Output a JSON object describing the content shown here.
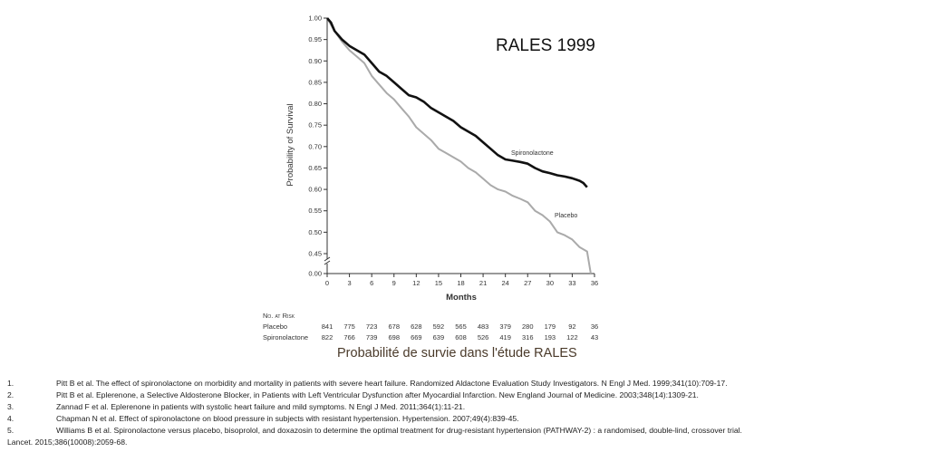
{
  "title": "RALES 1999",
  "caption": "Probabilité de survie dans l'étude RALES",
  "chart_data": {
    "type": "line",
    "xlabel": "Months",
    "ylabel": "Probability of Survival",
    "xlim": [
      0,
      36
    ],
    "ylim": [
      0.45,
      1.0
    ],
    "y_axis_break": "between 0.00 and 0.45",
    "x_ticks": [
      "0",
      "3",
      "6",
      "9",
      "12",
      "15",
      "18",
      "21",
      "24",
      "27",
      "30",
      "33",
      "36"
    ],
    "y_ticks": [
      "1.00",
      "0.95",
      "0.90",
      "0.85",
      "0.80",
      "0.75",
      "0.70",
      "0.65",
      "0.60",
      "0.55",
      "0.50",
      "0.45",
      "0.00"
    ],
    "grid": false,
    "series": [
      {
        "name": "Spironolactone",
        "color": "#111111",
        "x": [
          0,
          0.5,
          1,
          2,
          3,
          4,
          5,
          6,
          7,
          8,
          9,
          10,
          11,
          12,
          13,
          14,
          15,
          16,
          17,
          18,
          19,
          20,
          21,
          22,
          23,
          24,
          25,
          26,
          27,
          28,
          29,
          30,
          31,
          32,
          33,
          34,
          34.5,
          35
        ],
        "y": [
          1.0,
          0.99,
          0.97,
          0.95,
          0.935,
          0.925,
          0.915,
          0.895,
          0.875,
          0.865,
          0.85,
          0.835,
          0.82,
          0.815,
          0.805,
          0.79,
          0.78,
          0.77,
          0.76,
          0.745,
          0.735,
          0.725,
          0.71,
          0.695,
          0.68,
          0.67,
          0.667,
          0.664,
          0.66,
          0.65,
          0.642,
          0.638,
          0.633,
          0.63,
          0.626,
          0.62,
          0.615,
          0.605
        ]
      },
      {
        "name": "Placebo",
        "color": "#aaaaaa",
        "x": [
          0,
          1,
          2,
          3,
          4,
          5,
          6,
          7,
          8,
          9,
          10,
          11,
          12,
          13,
          14,
          15,
          16,
          17,
          18,
          19,
          20,
          21,
          22,
          23,
          24,
          25,
          26,
          27,
          28,
          29,
          30,
          31,
          32,
          33,
          34,
          35,
          35.5
        ],
        "y": [
          1.0,
          0.97,
          0.945,
          0.925,
          0.91,
          0.895,
          0.865,
          0.845,
          0.825,
          0.81,
          0.79,
          0.77,
          0.745,
          0.73,
          0.715,
          0.695,
          0.685,
          0.675,
          0.665,
          0.65,
          0.64,
          0.625,
          0.61,
          0.6,
          0.595,
          0.585,
          0.578,
          0.57,
          0.55,
          0.54,
          0.525,
          0.5,
          0.493,
          0.483,
          0.465,
          0.455,
          0.445
        ]
      }
    ],
    "at_risk": {
      "heading": "No. at Risk",
      "rows": [
        {
          "label": "Placebo",
          "values": [
            "841",
            "775",
            "723",
            "678",
            "628",
            "592",
            "565",
            "483",
            "379",
            "280",
            "179",
            "92",
            "36"
          ]
        },
        {
          "label": "Spironolactone",
          "values": [
            "822",
            "766",
            "739",
            "698",
            "669",
            "639",
            "608",
            "526",
            "419",
            "316",
            "193",
            "122",
            "43"
          ]
        }
      ]
    }
  },
  "references": [
    {
      "num": "1.",
      "text": "Pitt B et al. The effect of spironolactone on morbidity and mortality in patients with severe heart failure. Randomized Aldactone Evaluation Study Investigators. N Engl J Med. 1999;341(10):709-17."
    },
    {
      "num": "2.",
      "text": "Pitt B et al. Eplerenone, a Selective Aldosterone Blocker, in Patients with Left Ventricular Dysfunction after Myocardial Infarction. New England Journal of Medicine. 2003;348(14):1309-21."
    },
    {
      "num": "3.",
      "text": "Zannad F et al. Eplerenone in patients with systolic heart failure and mild symptoms. N Engl J Med. 2011;364(1):11-21."
    },
    {
      "num": "4.",
      "text": "Chapman N et al. Effect of spironolactone on blood pressure in subjects with resistant hypertension. Hypertension. 2007;49(4):839-45."
    },
    {
      "num": "5.",
      "text": "Williams B et al. Spironolactone versus placebo, bisoprolol, and doxazosin to determine the optimal treatment for drug-resistant hypertension (PATHWAY-2) : a randomised, double-lind, crossover trial.",
      "cont": "Lancet. 2015;386(10008):2059-68."
    }
  ]
}
